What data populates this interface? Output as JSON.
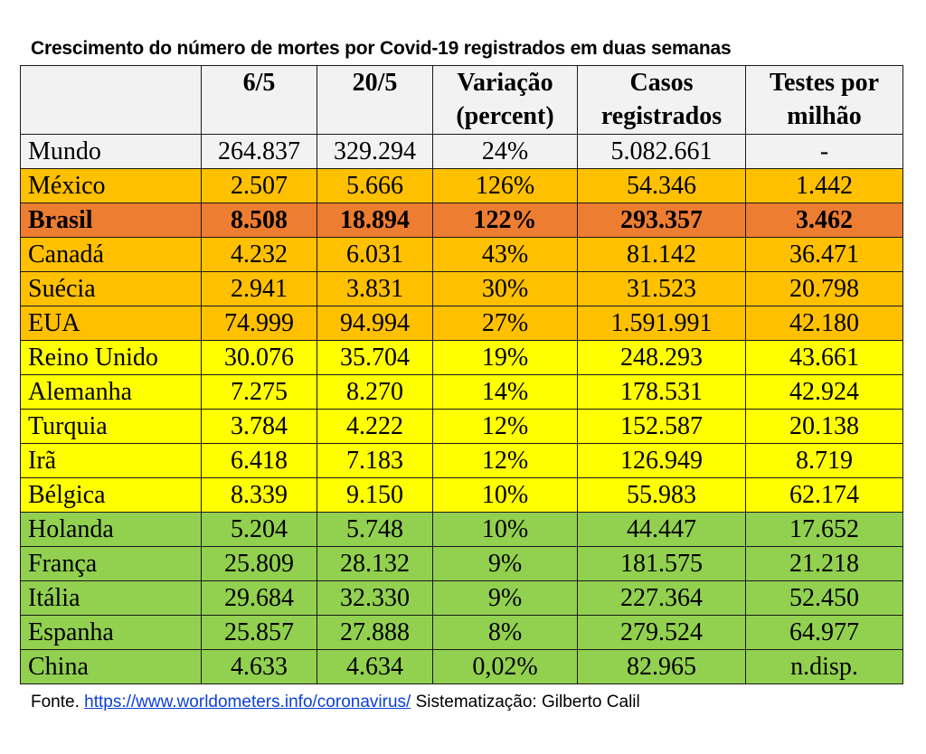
{
  "title": "Crescimento do número de mortes por Covid-19 registrados em duas semanas",
  "table": {
    "headers": [
      "",
      "6/5",
      "20/5",
      "Variação (percent)",
      "Casos registrados",
      "Testes por milhão"
    ],
    "rows": [
      {
        "country": "Mundo",
        "d65": "264.837",
        "d205": "329.294",
        "variation": "24%",
        "cases": "5.082.661",
        "tests": "-",
        "color": "#f2f2f2"
      },
      {
        "country": "México",
        "d65": "2.507",
        "d205": "5.666",
        "variation": "126%",
        "cases": "54.346",
        "tests": "1.442",
        "color": "#ffc000"
      },
      {
        "country": "Brasil",
        "d65": "8.508",
        "d205": "18.894",
        "variation": "122%",
        "cases": "293.357",
        "tests": "3.462",
        "color": "#ed7d31"
      },
      {
        "country": "Canadá",
        "d65": "4.232",
        "d205": "6.031",
        "variation": "43%",
        "cases": "81.142",
        "tests": "36.471",
        "color": "#ffc000"
      },
      {
        "country": "Suécia",
        "d65": "2.941",
        "d205": "3.831",
        "variation": "30%",
        "cases": "31.523",
        "tests": "20.798",
        "color": "#ffc000"
      },
      {
        "country": "EUA",
        "d65": "74.999",
        "d205": "94.994",
        "variation": "27%",
        "cases": "1.591.991",
        "tests": "42.180",
        "color": "#ffc000"
      },
      {
        "country": "Reino Unido",
        "d65": "30.076",
        "d205": "35.704",
        "variation": "19%",
        "cases": "248.293",
        "tests": "43.661",
        "color": "#ffff00"
      },
      {
        "country": "Alemanha",
        "d65": "7.275",
        "d205": "8.270",
        "variation": "14%",
        "cases": "178.531",
        "tests": "42.924",
        "color": "#ffff00"
      },
      {
        "country": "Turquia",
        "d65": "3.784",
        "d205": "4.222",
        "variation": "12%",
        "cases": "152.587",
        "tests": "20.138",
        "color": "#ffff00"
      },
      {
        "country": "Irã",
        "d65": "6.418",
        "d205": "7.183",
        "variation": "12%",
        "cases": "126.949",
        "tests": "8.719",
        "color": "#ffff00"
      },
      {
        "country": "Bélgica",
        "d65": "8.339",
        "d205": "9.150",
        "variation": "10%",
        "cases": "55.983",
        "tests": "62.174",
        "color": "#ffff00"
      },
      {
        "country": "Holanda",
        "d65": "5.204",
        "d205": "5.748",
        "variation": "10%",
        "cases": "44.447",
        "tests": "17.652",
        "color": "#92d050"
      },
      {
        "country": "França",
        "d65": "25.809",
        "d205": "28.132",
        "variation": "9%",
        "cases": "181.575",
        "tests": "21.218",
        "color": "#92d050"
      },
      {
        "country": "Itália",
        "d65": "29.684",
        "d205": "32.330",
        "variation": "9%",
        "cases": "227.364",
        "tests": "52.450",
        "color": "#92d050"
      },
      {
        "country": "Espanha",
        "d65": "25.857",
        "d205": "27.888",
        "variation": "8%",
        "cases": "279.524",
        "tests": "64.977",
        "color": "#92d050"
      },
      {
        "country": "China",
        "d65": "4.633",
        "d205": "4.634",
        "variation": "0,02%",
        "cases": "82.965",
        "tests": "n.disp.",
        "color": "#92d050"
      }
    ]
  },
  "footer": {
    "prefix": "Fonte. ",
    "link": "https://www.worldometers.info/coronavirus/",
    "suffix": " Sistematização: Gilberto Calil"
  }
}
